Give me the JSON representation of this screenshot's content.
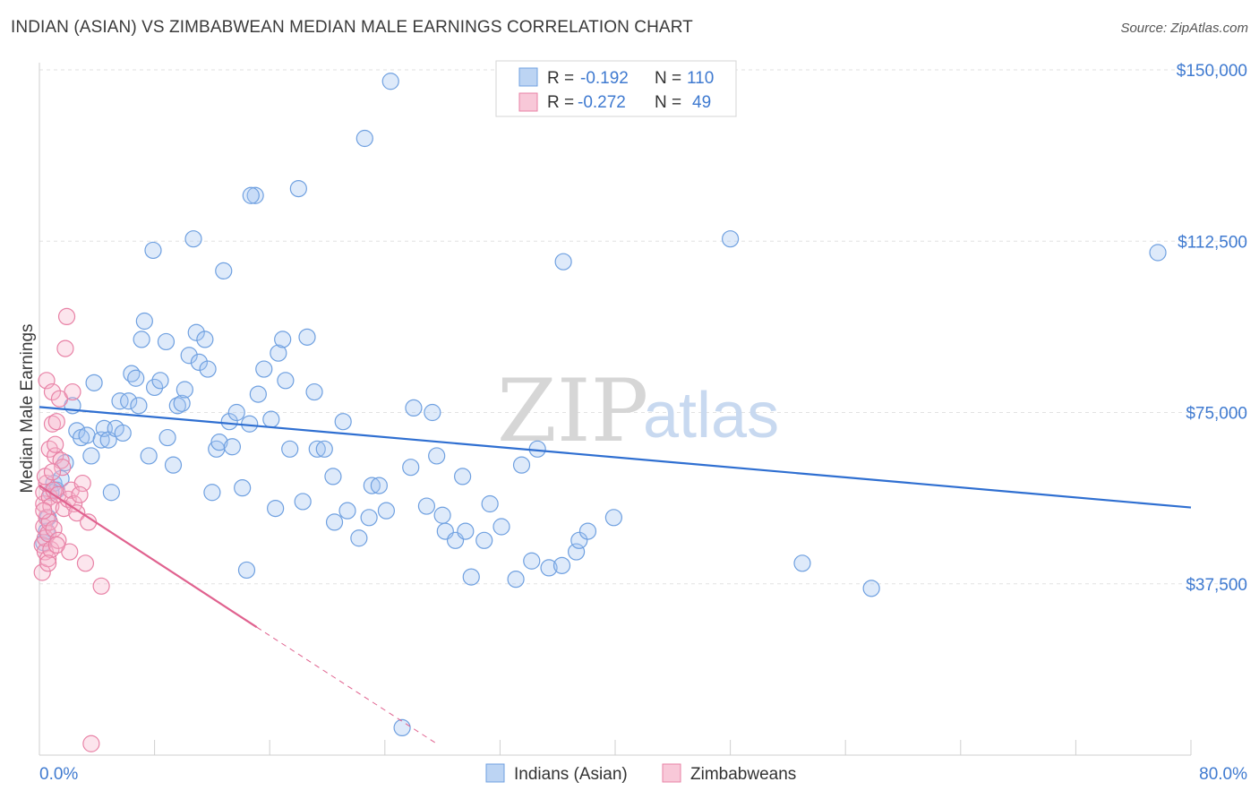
{
  "header": {
    "title": "INDIAN (ASIAN) VS ZIMBABWEAN MEDIAN MALE EARNINGS CORRELATION CHART",
    "source": "Source: ZipAtlas.com"
  },
  "watermark": {
    "zip": "ZIP",
    "atlas": "atlas"
  },
  "legend": {
    "rows": [
      {
        "r_label": "R =",
        "r_value": "-0.192",
        "n_label": "N =",
        "n_value": "110",
        "color": "#6fa0e0"
      },
      {
        "r_label": "R =",
        "r_value": "-0.272",
        "n_label": "N =",
        "n_value": "49",
        "color": "#e882a6"
      }
    ]
  },
  "bottom_legend": [
    {
      "label": "Indians (Asian)",
      "color": "#6fa0e0"
    },
    {
      "label": "Zimbabweans",
      "color": "#e882a6"
    }
  ],
  "chart_data": {
    "type": "scatter",
    "title": "INDIAN (ASIAN) VS ZIMBABWEAN MEDIAN MALE EARNINGS CORRELATION CHART",
    "xlabel": "",
    "ylabel": "Median Male Earnings",
    "xlim": [
      0,
      80
    ],
    "ylim": [
      0,
      156000
    ],
    "x_tick_labels": [
      "0.0%",
      "80.0%"
    ],
    "y_ticks": [
      37500,
      75000,
      112500,
      150000
    ],
    "y_tick_labels": [
      "$37,500",
      "$75,000",
      "$112,500",
      "$150,000"
    ],
    "grid": true,
    "legend_position": "top-center",
    "series": [
      {
        "name": "Indians (Asian)",
        "color": "#6fa0e0",
        "trend": {
          "x": [
            0,
            80
          ],
          "y": [
            76200,
            54200
          ],
          "dashed_from_x": null
        },
        "points": [
          [
            0.3,
            46500
          ],
          [
            0.5,
            49000
          ],
          [
            0.6,
            52000
          ],
          [
            0.8,
            57500
          ],
          [
            1.0,
            59500
          ],
          [
            1.2,
            58000
          ],
          [
            1.5,
            60500
          ],
          [
            1.8,
            64000
          ],
          [
            2.3,
            76500
          ],
          [
            2.6,
            71000
          ],
          [
            2.9,
            69500
          ],
          [
            3.3,
            70000
          ],
          [
            3.6,
            65500
          ],
          [
            3.8,
            81500
          ],
          [
            4.3,
            69000
          ],
          [
            4.5,
            71500
          ],
          [
            4.8,
            69000
          ],
          [
            5.0,
            57500
          ],
          [
            5.3,
            71500
          ],
          [
            5.6,
            77500
          ],
          [
            5.8,
            70500
          ],
          [
            6.2,
            77500
          ],
          [
            6.4,
            83500
          ],
          [
            6.7,
            82500
          ],
          [
            6.9,
            76500
          ],
          [
            7.1,
            91000
          ],
          [
            7.3,
            95000
          ],
          [
            7.6,
            65500
          ],
          [
            7.9,
            110500
          ],
          [
            8.0,
            80500
          ],
          [
            8.4,
            82000
          ],
          [
            8.8,
            90500
          ],
          [
            8.9,
            69500
          ],
          [
            9.3,
            63500
          ],
          [
            9.6,
            76500
          ],
          [
            9.9,
            77000
          ],
          [
            10.1,
            80000
          ],
          [
            10.4,
            87500
          ],
          [
            10.7,
            113000
          ],
          [
            10.9,
            92500
          ],
          [
            11.1,
            86000
          ],
          [
            11.5,
            91000
          ],
          [
            11.7,
            84500
          ],
          [
            12.0,
            57500
          ],
          [
            12.3,
            67000
          ],
          [
            12.5,
            68500
          ],
          [
            12.8,
            106000
          ],
          [
            13.2,
            73000
          ],
          [
            13.4,
            67500
          ],
          [
            13.7,
            75000
          ],
          [
            14.1,
            58500
          ],
          [
            14.4,
            40500
          ],
          [
            14.6,
            72500
          ],
          [
            15.0,
            122500
          ],
          [
            15.2,
            79000
          ],
          [
            15.6,
            84500
          ],
          [
            16.1,
            73500
          ],
          [
            16.4,
            54000
          ],
          [
            16.6,
            88000
          ],
          [
            16.9,
            91000
          ],
          [
            17.1,
            82000
          ],
          [
            17.4,
            67000
          ],
          [
            18.0,
            124000
          ],
          [
            18.3,
            55500
          ],
          [
            18.6,
            91500
          ],
          [
            19.1,
            79500
          ],
          [
            19.3,
            67000
          ],
          [
            19.8,
            67000
          ],
          [
            20.4,
            61000
          ],
          [
            20.5,
            51000
          ],
          [
            21.1,
            73000
          ],
          [
            21.4,
            53500
          ],
          [
            22.2,
            47500
          ],
          [
            22.9,
            52000
          ],
          [
            23.1,
            59000
          ],
          [
            23.6,
            59000
          ],
          [
            24.1,
            53500
          ],
          [
            25.8,
            63000
          ],
          [
            26.0,
            76000
          ],
          [
            26.9,
            54500
          ],
          [
            27.3,
            75000
          ],
          [
            27.6,
            65500
          ],
          [
            28.0,
            52500
          ],
          [
            28.2,
            49000
          ],
          [
            28.9,
            47000
          ],
          [
            29.4,
            61000
          ],
          [
            29.6,
            49000
          ],
          [
            30.0,
            39000
          ],
          [
            30.9,
            47000
          ],
          [
            31.3,
            55000
          ],
          [
            32.1,
            50000
          ],
          [
            33.1,
            38500
          ],
          [
            33.5,
            63500
          ],
          [
            34.2,
            42500
          ],
          [
            34.6,
            67000
          ],
          [
            35.4,
            41000
          ],
          [
            36.3,
            41500
          ],
          [
            37.3,
            44500
          ],
          [
            37.5,
            47000
          ],
          [
            38.1,
            49000
          ],
          [
            39.9,
            52000
          ],
          [
            22.6,
            135000
          ],
          [
            14.7,
            122500
          ],
          [
            24.4,
            147500
          ],
          [
            36.4,
            108000
          ],
          [
            48.0,
            113000
          ],
          [
            53.0,
            42000
          ],
          [
            57.8,
            36500
          ],
          [
            77.7,
            110000
          ],
          [
            25.2,
            6000
          ]
        ]
      },
      {
        "name": "Zimbabweans",
        "color": "#e882a6",
        "trend": {
          "x": [
            0,
            15.1,
            27.6
          ],
          "y": [
            59000,
            28000,
            2500
          ],
          "dashed_from_x": 15.1
        },
        "points": [
          [
            0.2,
            40000
          ],
          [
            0.2,
            46000
          ],
          [
            0.3,
            50000
          ],
          [
            0.3,
            55000
          ],
          [
            0.3,
            57500
          ],
          [
            0.4,
            44500
          ],
          [
            0.4,
            47500
          ],
          [
            0.5,
            52000
          ],
          [
            0.5,
            59500
          ],
          [
            0.5,
            82000
          ],
          [
            0.6,
            43000
          ],
          [
            0.6,
            48500
          ],
          [
            0.7,
            51000
          ],
          [
            0.7,
            56500
          ],
          [
            0.7,
            67000
          ],
          [
            0.8,
            45000
          ],
          [
            0.8,
            54500
          ],
          [
            0.9,
            72500
          ],
          [
            0.9,
            79500
          ],
          [
            1.0,
            49500
          ],
          [
            1.0,
            58000
          ],
          [
            1.1,
            65500
          ],
          [
            1.1,
            68000
          ],
          [
            1.2,
            73000
          ],
          [
            1.3,
            47000
          ],
          [
            1.3,
            57000
          ],
          [
            1.4,
            78000
          ],
          [
            1.5,
            64500
          ],
          [
            1.6,
            63000
          ],
          [
            1.7,
            54000
          ],
          [
            1.8,
            89000
          ],
          [
            1.9,
            96000
          ],
          [
            2.0,
            56000
          ],
          [
            2.1,
            44500
          ],
          [
            2.2,
            58000
          ],
          [
            2.3,
            79500
          ],
          [
            2.4,
            55000
          ],
          [
            2.6,
            53000
          ],
          [
            3.0,
            59500
          ],
          [
            3.2,
            42000
          ],
          [
            3.4,
            51000
          ],
          [
            3.6,
            2500
          ],
          [
            4.3,
            37000
          ],
          [
            0.4,
            61000
          ],
          [
            0.6,
            42000
          ],
          [
            0.9,
            62000
          ],
          [
            1.2,
            46000
          ],
          [
            2.8,
            57000
          ],
          [
            0.3,
            53500
          ]
        ]
      }
    ]
  }
}
